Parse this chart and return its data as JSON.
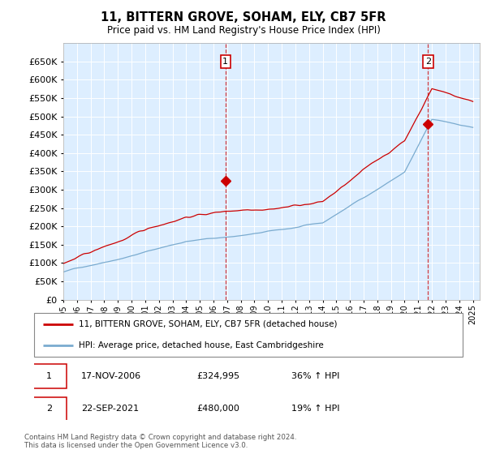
{
  "title": "11, BITTERN GROVE, SOHAM, ELY, CB7 5FR",
  "subtitle": "Price paid vs. HM Land Registry's House Price Index (HPI)",
  "legend_line1": "11, BITTERN GROVE, SOHAM, ELY, CB7 5FR (detached house)",
  "legend_line2": "HPI: Average price, detached house, East Cambridgeshire",
  "transaction1_date": "17-NOV-2006",
  "transaction1_price": "£324,995",
  "transaction1_hpi": "36% ↑ HPI",
  "transaction2_date": "22-SEP-2021",
  "transaction2_price": "£480,000",
  "transaction2_hpi": "19% ↑ HPI",
  "footer": "Contains HM Land Registry data © Crown copyright and database right 2024.\nThis data is licensed under the Open Government Licence v3.0.",
  "red_color": "#cc0000",
  "blue_color": "#7aabcf",
  "background_color": "#ddeeff",
  "yticks": [
    0,
    50000,
    100000,
    150000,
    200000,
    250000,
    300000,
    350000,
    400000,
    450000,
    500000,
    550000,
    600000,
    650000
  ],
  "transaction1_year": 2006.88,
  "transaction1_value": 324995,
  "transaction2_year": 2021.72,
  "transaction2_value": 480000,
  "xlim_start": 1995,
  "xlim_end": 2025.5,
  "ylim_max": 700000
}
